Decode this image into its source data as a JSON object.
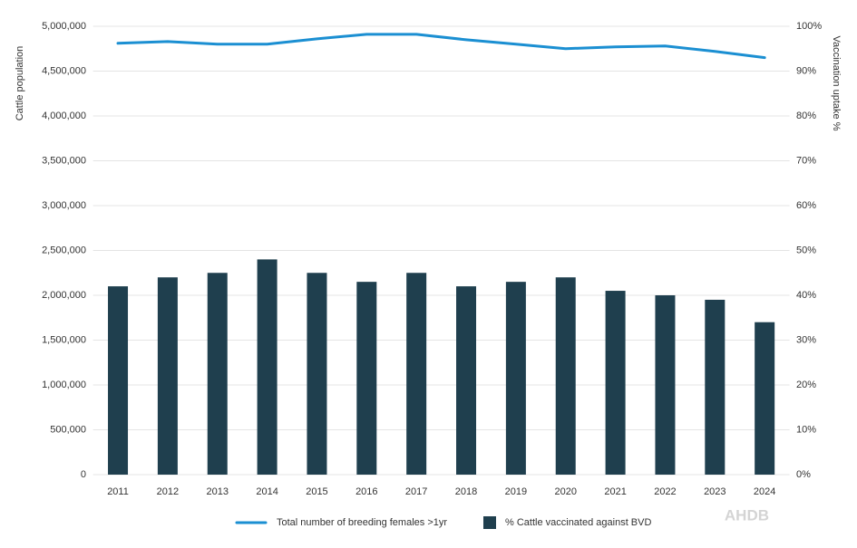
{
  "chart_data": {
    "type": "combo",
    "categories": [
      "2011",
      "2012",
      "2013",
      "2014",
      "2015",
      "2016",
      "2017",
      "2018",
      "2019",
      "2020",
      "2021",
      "2022",
      "2023",
      "2024"
    ],
    "series": [
      {
        "name": "Total number of breeding females >1yr",
        "type": "line",
        "axis": "y",
        "color": "#1b8fd2",
        "values": [
          4810000,
          4830000,
          4800000,
          4800000,
          4860000,
          4910000,
          4910000,
          4850000,
          4800000,
          4750000,
          4770000,
          4780000,
          4720000,
          4650000
        ]
      },
      {
        "name": "% Cattle vaccinated against BVD",
        "type": "bar",
        "axis": "y2",
        "color": "#1f3f4e",
        "values": [
          42,
          44,
          45,
          48,
          45,
          43,
          45,
          42,
          43,
          44,
          41,
          40,
          39,
          34
        ]
      }
    ],
    "y_label": "Cattle population",
    "y2_label": "Vaccination uptake %",
    "ylim": [
      0,
      5000000
    ],
    "yticks": [
      0,
      {
        "value": 500000,
        "label": "500,000"
      },
      {
        "value": 1000000,
        "label": "1,000,000"
      },
      {
        "value": 1500000,
        "label": "1,500,000"
      },
      {
        "value": 2000000,
        "label": "2,000,000"
      },
      {
        "value": 2500000,
        "label": "2,500,000"
      },
      {
        "value": 3000000,
        "label": "3,000,000"
      },
      {
        "value": 3500000,
        "label": "3,500,000"
      },
      {
        "value": 4000000,
        "label": "4,000,000"
      },
      {
        "value": 4500000,
        "label": "4,500,000"
      },
      {
        "value": 5000000,
        "label": "5,000,000"
      }
    ],
    "y2lim": [
      0,
      100
    ],
    "y2ticks": [
      {
        "value": 0,
        "label": "0%"
      },
      {
        "value": 10,
        "label": "10%"
      },
      {
        "value": 20,
        "label": "20%"
      },
      {
        "value": 30,
        "label": "30%"
      },
      {
        "value": 40,
        "label": "40%"
      },
      {
        "value": 50,
        "label": "50%"
      },
      {
        "value": 60,
        "label": "60%"
      },
      {
        "value": 70,
        "label": "70%"
      },
      {
        "value": 80,
        "label": "80%"
      },
      {
        "value": 90,
        "label": "90%"
      },
      {
        "value": 100,
        "label": "100%"
      }
    ],
    "grid": true,
    "legend": "bottom",
    "logo": "AHDB"
  }
}
